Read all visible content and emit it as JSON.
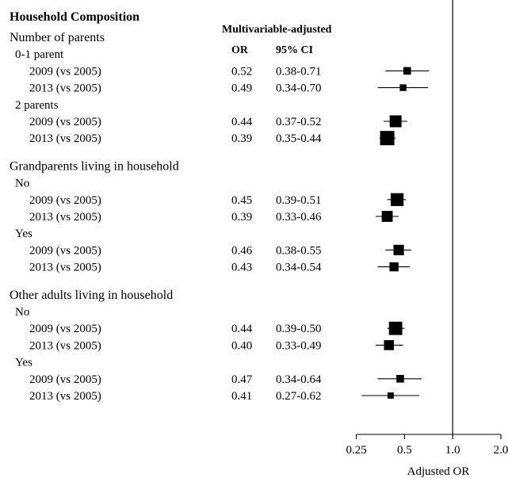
{
  "chart_data": {
    "type": "forest",
    "title": "Household Composition",
    "header_group": "Multivariable-adjusted",
    "header_or": "OR",
    "header_ci": "95% CI",
    "xlabel": "Adjusted OR",
    "xscale": "log",
    "xlim": [
      0.2,
      2.0
    ],
    "xticks": [
      0.25,
      0.5,
      1.0,
      2.0
    ],
    "xtick_labels": [
      "0.25",
      "0.5",
      "1.0",
      "2.0"
    ],
    "reference_line": 1.0,
    "rows": [
      {
        "kind": "heading",
        "label": "Number of parents"
      },
      {
        "kind": "subheading",
        "label": "0-1 parent"
      },
      {
        "kind": "data",
        "label": "2009 (vs 2005)",
        "or": 0.52,
        "or_text": "0.52",
        "lo": 0.38,
        "hi": 0.71,
        "ci_text": "0.38-0.71",
        "weight": 0.3
      },
      {
        "kind": "data",
        "label": "2013 (vs 2005)",
        "or": 0.49,
        "or_text": "0.49",
        "lo": 0.34,
        "hi": 0.7,
        "ci_text": "0.34-0.70",
        "weight": 0.2
      },
      {
        "kind": "subheading",
        "label": "2 parents"
      },
      {
        "kind": "data",
        "label": "2009 (vs 2005)",
        "or": 0.44,
        "or_text": "0.44",
        "lo": 0.37,
        "hi": 0.52,
        "ci_text": "0.37-0.52",
        "weight": 0.75
      },
      {
        "kind": "data",
        "label": "2013 (vs 2005)",
        "or": 0.39,
        "or_text": "0.39",
        "lo": 0.35,
        "hi": 0.44,
        "ci_text": "0.35-0.44",
        "weight": 1.0
      },
      {
        "kind": "spacer"
      },
      {
        "kind": "heading",
        "label": "Grandparents living in household"
      },
      {
        "kind": "subheading",
        "label": "No"
      },
      {
        "kind": "data",
        "label": "2009 (vs 2005)",
        "or": 0.45,
        "or_text": "0.45",
        "lo": 0.39,
        "hi": 0.51,
        "ci_text": "0.39-0.51",
        "weight": 0.85
      },
      {
        "kind": "data",
        "label": "2013 (vs 2005)",
        "or": 0.39,
        "or_text": "0.39",
        "lo": 0.33,
        "hi": 0.46,
        "ci_text": "0.33-0.46",
        "weight": 0.65
      },
      {
        "kind": "subheading",
        "label": "Yes"
      },
      {
        "kind": "data",
        "label": "2009 (vs 2005)",
        "or": 0.46,
        "or_text": "0.46",
        "lo": 0.38,
        "hi": 0.55,
        "ci_text": "0.38-0.55",
        "weight": 0.6
      },
      {
        "kind": "data",
        "label": "2013 (vs 2005)",
        "or": 0.43,
        "or_text": "0.43",
        "lo": 0.34,
        "hi": 0.54,
        "ci_text": "0.34-0.54",
        "weight": 0.45
      },
      {
        "kind": "spacer"
      },
      {
        "kind": "heading",
        "label": "Other adults living in household"
      },
      {
        "kind": "subheading",
        "label": "No"
      },
      {
        "kind": "data",
        "label": "2009 (vs 2005)",
        "or": 0.44,
        "or_text": "0.44",
        "lo": 0.39,
        "hi": 0.5,
        "ci_text": "0.39-0.50",
        "weight": 0.9
      },
      {
        "kind": "data",
        "label": "2013 (vs 2005)",
        "or": 0.4,
        "or_text": "0.40",
        "lo": 0.33,
        "hi": 0.49,
        "ci_text": "0.33-0.49",
        "weight": 0.55
      },
      {
        "kind": "subheading",
        "label": "Yes"
      },
      {
        "kind": "data",
        "label": "2009 (vs 2005)",
        "or": 0.47,
        "or_text": "0.47",
        "lo": 0.34,
        "hi": 0.64,
        "ci_text": "0.34-0.64",
        "weight": 0.3
      },
      {
        "kind": "data",
        "label": "2013 (vs 2005)",
        "or": 0.41,
        "or_text": "0.41",
        "lo": 0.27,
        "hi": 0.62,
        "ci_text": "0.27-0.62",
        "weight": 0.15
      }
    ]
  }
}
